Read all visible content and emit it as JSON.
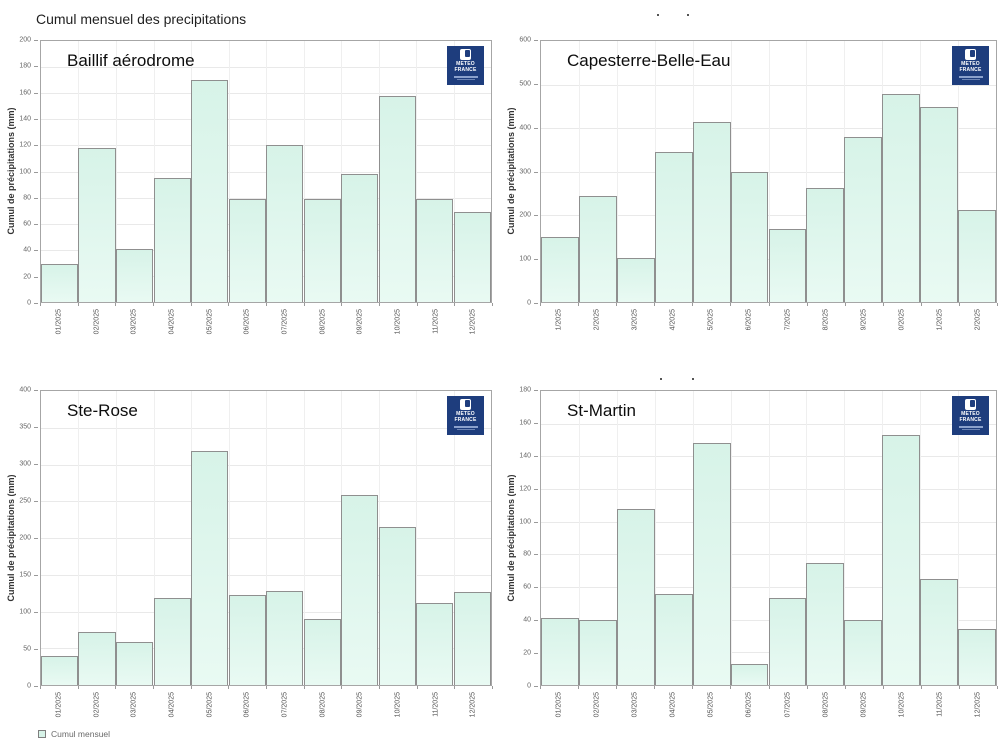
{
  "page_title": "Cumul mensuel des precipitations",
  "legend": {
    "label": "Cumul mensuel"
  },
  "logo": {
    "line1": "METEO",
    "line2": "FRANCE"
  },
  "colors": {
    "bar_fill": "#d7f3e8",
    "bar_fill_bottom": "#e9faf3",
    "bar_border": "#8f8f8f",
    "grid": "#e9e9e9",
    "frame": "#a6a6a6",
    "logo_bg": "#1e3d7d"
  },
  "chart_data": [
    {
      "type": "bar",
      "station": "Baillif aérodrome",
      "title": "Cumul mensuel des precipitations",
      "xlabel": "",
      "ylabel": "Cumul de précipitations (mm)",
      "ylim": [
        0,
        200
      ],
      "ytick_step": 20,
      "grid": true,
      "legend_position": "none",
      "categories": [
        "01/2025",
        "02/2025",
        "03/2025",
        "04/2025",
        "05/2025",
        "06/2025",
        "07/2025",
        "08/2025",
        "09/2025",
        "10/2025",
        "11/2025",
        "12/2025"
      ],
      "series": [
        {
          "name": "Cumul mensuel",
          "values": [
            29,
            118,
            41,
            95,
            170,
            79,
            120,
            79,
            98,
            158,
            79,
            69
          ]
        }
      ]
    },
    {
      "type": "bar",
      "station": "Capesterre-Belle-Eau",
      "title": "",
      "xlabel": "",
      "ylabel": "Cumul de précipitations (mm)",
      "ylim": [
        0,
        600
      ],
      "ytick_step": 100,
      "grid": true,
      "legend_position": "none",
      "categories": [
        "1/2025",
        "2/2025",
        "3/2025",
        "4/2025",
        "5/2025",
        "6/2025",
        "7/2025",
        "8/2025",
        "9/2025",
        "0/2025",
        "1/2025",
        "2/2025"
      ],
      "series": [
        {
          "name": "Cumul mensuel",
          "values": [
            150,
            244,
            102,
            345,
            413,
            298,
            168,
            263,
            380,
            478,
            448,
            212
          ]
        }
      ]
    },
    {
      "type": "bar",
      "station": "Ste-Rose",
      "title": "",
      "xlabel": "",
      "ylabel": "Cumul de précipitations (mm)",
      "ylim": [
        0,
        400
      ],
      "ytick_step": 50,
      "grid": true,
      "legend_position": "bottom-left",
      "categories": [
        "01/2025",
        "02/2025",
        "03/2025",
        "04/2025",
        "05/2025",
        "06/2025",
        "07/2025",
        "08/2025",
        "09/2025",
        "10/2025",
        "11/2025",
        "12/2025"
      ],
      "series": [
        {
          "name": "Cumul mensuel",
          "values": [
            40,
            72,
            58,
            119,
            318,
            123,
            128,
            90,
            259,
            215,
            111,
            126
          ]
        }
      ]
    },
    {
      "type": "bar",
      "station": "St-Martin",
      "title": "",
      "xlabel": "",
      "ylabel": "Cumul de précipitations (mm)",
      "ylim": [
        0,
        180
      ],
      "ytick_step": 20,
      "grid": true,
      "legend_position": "none",
      "categories": [
        "01/2025",
        "02/2025",
        "03/2025",
        "04/2025",
        "05/2025",
        "06/2025",
        "07/2025",
        "08/2025",
        "09/2025",
        "10/2025",
        "11/2025",
        "12/2025"
      ],
      "series": [
        {
          "name": "Cumul mensuel",
          "values": [
            41,
            40,
            108,
            56,
            148,
            13,
            53,
            75,
            40,
            153,
            65,
            34
          ]
        }
      ]
    }
  ]
}
